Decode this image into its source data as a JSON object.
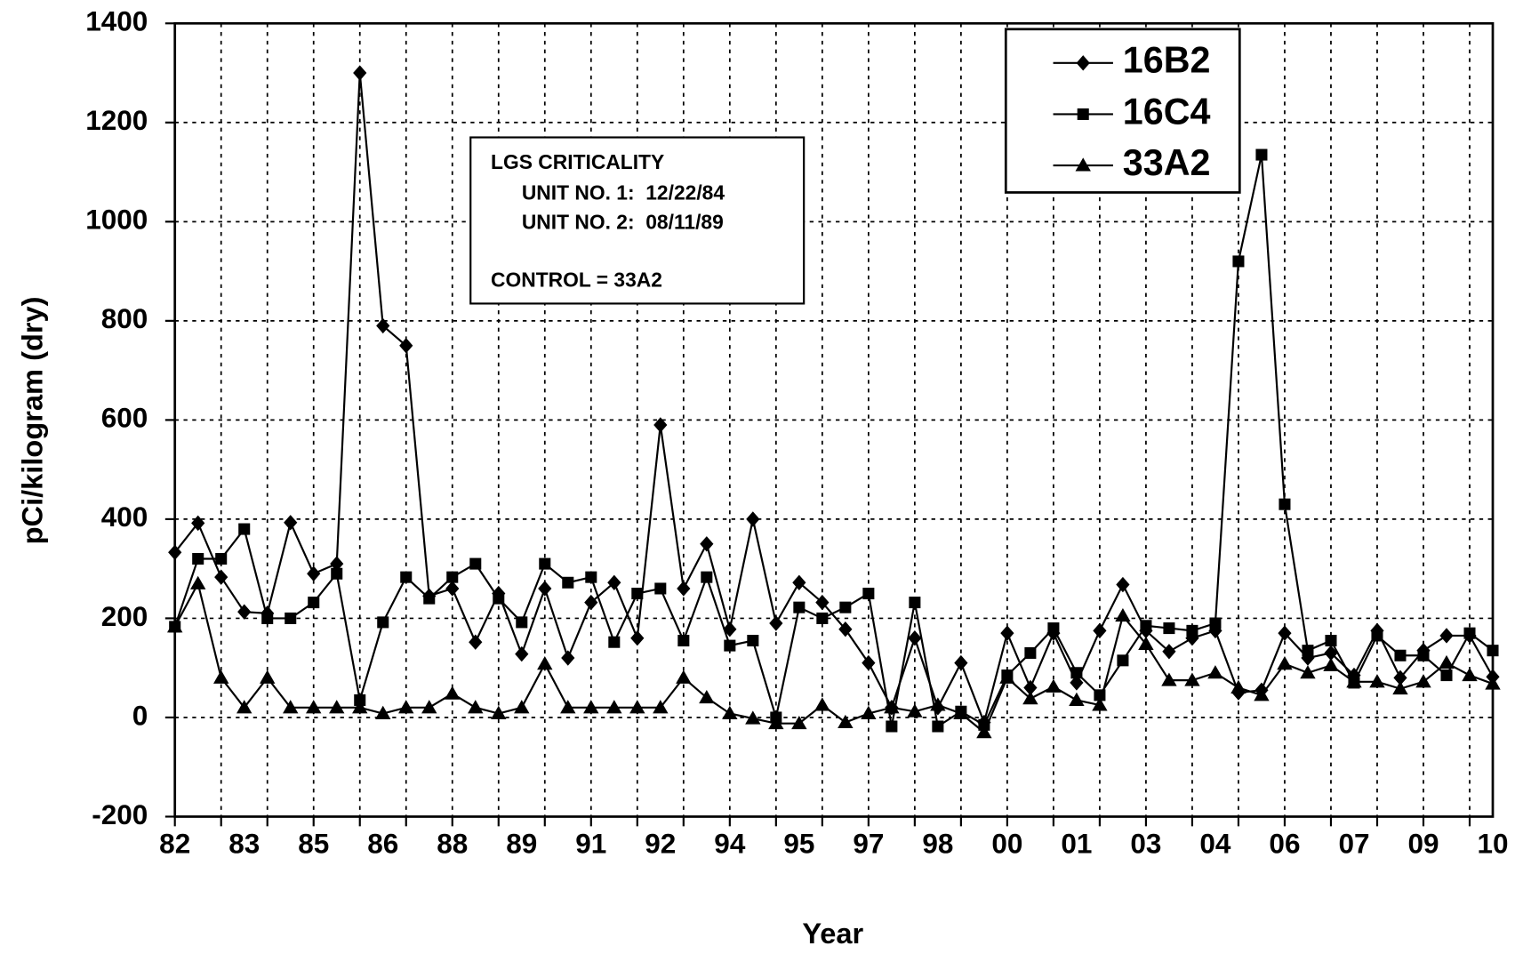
{
  "chart_data": {
    "type": "line",
    "y_label": "pCi/kilogram (dry)",
    "x_label": "Year",
    "annotations": [
      "LGS CRITICALITY",
      "UNIT NO. 1:  12/22/84",
      "UNIT NO. 2:  08/11/89",
      "CONTROL = 33A2"
    ],
    "categories": [
      "82",
      null,
      null,
      "83",
      null,
      null,
      "85",
      null,
      null,
      "86",
      null,
      null,
      "88",
      null,
      null,
      "89",
      null,
      null,
      "91",
      null,
      null,
      "92",
      null,
      null,
      "94",
      null,
      null,
      "95",
      null,
      null,
      "97",
      null,
      null,
      "98",
      null,
      null,
      "00",
      null,
      null,
      "01",
      null,
      null,
      "03",
      null,
      null,
      "04",
      null,
      null,
      "06",
      null,
      null,
      "07",
      null,
      null,
      "09",
      null,
      null,
      "10"
    ],
    "series": [
      {
        "name": "16B2",
        "color": "#000000",
        "marker": "diamond",
        "values": [
          333,
          392,
          283,
          213,
          210,
          393,
          290,
          310,
          1300,
          790,
          750,
          245,
          260,
          152,
          250,
          128,
          260,
          120,
          232,
          272,
          160,
          590,
          260,
          350,
          178,
          400,
          190,
          272,
          232,
          178,
          110,
          20,
          160,
          20,
          110,
          -10,
          170,
          60,
          170,
          70,
          175,
          268,
          175,
          133,
          160,
          175,
          50,
          55,
          170,
          120,
          130,
          85,
          175,
          80,
          135,
          165,
          165,
          82
        ]
      },
      {
        "name": "16C4",
        "color": "#000000",
        "marker": "square",
        "values": [
          183,
          320,
          320,
          380,
          200,
          200,
          232,
          290,
          35,
          192,
          283,
          240,
          283,
          310,
          240,
          192,
          310,
          272,
          283,
          152,
          250,
          260,
          155,
          283,
          145,
          155,
          0,
          222,
          200,
          222,
          250,
          -18,
          232,
          -18,
          12,
          -15,
          85,
          130,
          180,
          90,
          45,
          115,
          185,
          180,
          175,
          190,
          920,
          1135,
          430,
          135,
          155,
          70,
          165,
          125,
          125,
          85,
          170,
          135
        ]
      },
      {
        "name": "33A2",
        "color": "#000000",
        "marker": "triangle",
        "values": [
          183,
          270,
          80,
          20,
          80,
          20,
          20,
          20,
          20,
          8,
          20,
          20,
          48,
          20,
          8,
          20,
          108,
          20,
          20,
          20,
          20,
          20,
          80,
          40,
          8,
          -2,
          -12,
          -12,
          25,
          -10,
          8,
          20,
          12,
          25,
          8,
          -30,
          80,
          38,
          62,
          35,
          25,
          205,
          148,
          75,
          75,
          90,
          60,
          45,
          108,
          90,
          105,
          72,
          72,
          58,
          72,
          110,
          85,
          68
        ]
      }
    ],
    "ylim": [
      -200,
      1400
    ],
    "yticks": [
      -200,
      0,
      200,
      400,
      600,
      800,
      1000,
      1200,
      1400
    ],
    "grid": true,
    "legend": "upper right"
  }
}
